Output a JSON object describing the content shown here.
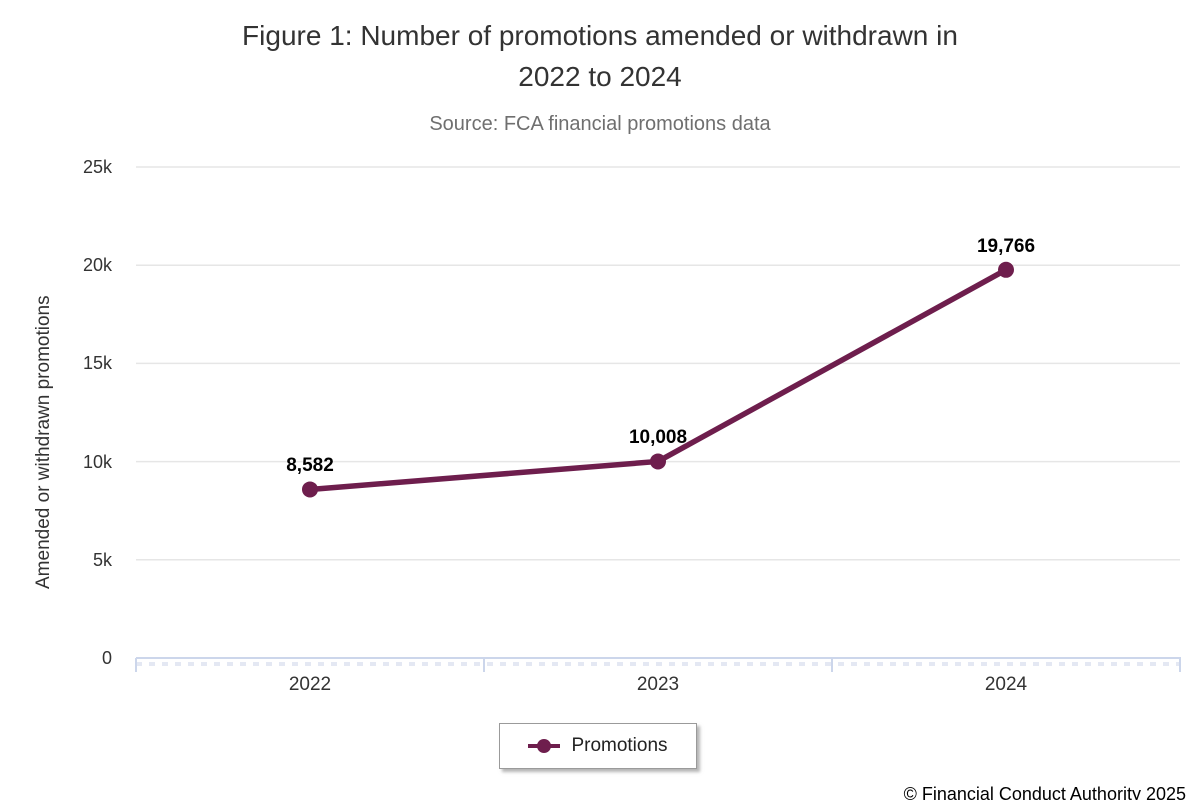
{
  "header": {
    "title_line1": "Figure 1: Number of promotions amended or withdrawn in",
    "title_line2": "2022 to 2024",
    "subtitle": "Source: FCA financial promotions data"
  },
  "footer": {
    "copyright": "© Financial Conduct Authority 2025"
  },
  "colors": {
    "series": "#6e1e4d",
    "gridline": "#e6e6e6",
    "axis_line": "#ccd6eb",
    "minor_ticks": "#e4e8f3",
    "title_text": "#333333",
    "subtitle_text": "#6f6f6f",
    "data_label_text": "#000000"
  },
  "chart_data": {
    "type": "line",
    "title": "Figure 1: Number of promotions amended or withdrawn in 2022 to 2024",
    "subtitle": "Source: FCA financial promotions data",
    "xlabel": "",
    "ylabel": "Amended or withdrawn promotions",
    "categories": [
      "2022",
      "2023",
      "2024"
    ],
    "series": [
      {
        "name": "Promotions",
        "values": [
          8582,
          10008,
          19766
        ],
        "labels": [
          "8,582",
          "10,008",
          "19,766"
        ],
        "color": "#6e1e4d"
      }
    ],
    "ylim": [
      0,
      25000
    ],
    "yticks": [
      {
        "value": 0,
        "label": "0"
      },
      {
        "value": 5000,
        "label": "5k"
      },
      {
        "value": 10000,
        "label": "10k"
      },
      {
        "value": 15000,
        "label": "15k"
      },
      {
        "value": 20000,
        "label": "20k"
      },
      {
        "value": 25000,
        "label": "25k"
      }
    ],
    "grid": true,
    "legend_position": "bottom"
  }
}
